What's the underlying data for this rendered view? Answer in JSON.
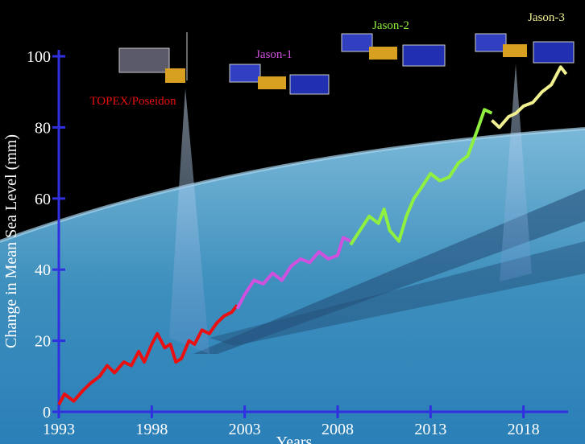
{
  "chart_data": {
    "type": "line",
    "xlabel": "Years",
    "ylabel": "Change in Mean Sea Level (mm)",
    "xlim": [
      1993,
      2020.4
    ],
    "ylim": [
      0,
      100
    ],
    "xticks": [
      1993,
      1998,
      2003,
      2008,
      2013,
      2018
    ],
    "yticks": [
      0,
      20,
      40,
      60,
      80,
      100
    ],
    "axis_color": "#3030e0",
    "series": [
      {
        "name": "TOPEX/Poseidon",
        "color": "#e81010",
        "x": [
          1993.0,
          1993.3,
          1993.8,
          1994.3,
          1994.7,
          1995.2,
          1995.6,
          1996.0,
          1996.5,
          1996.9,
          1997.3,
          1997.6,
          1998.0,
          1998.3,
          1998.7,
          1999.0,
          1999.3,
          1999.6,
          2000.0,
          2000.3,
          2000.7,
          2001.1,
          2001.5,
          2001.9,
          2002.3,
          2002.6
        ],
        "values": [
          2,
          5,
          3,
          6,
          8,
          10,
          13,
          11,
          14,
          13,
          17,
          14,
          19,
          22,
          18,
          19,
          14,
          15,
          20,
          19,
          23,
          22,
          25,
          27,
          28,
          30
        ]
      },
      {
        "name": "Jason-1",
        "color": "#d050e0",
        "x": [
          2002.6,
          2003.0,
          2003.5,
          2004.0,
          2004.5,
          2005.0,
          2005.5,
          2006.0,
          2006.5,
          2007.0,
          2007.5,
          2008.0,
          2008.3,
          2008.7
        ],
        "values": [
          29,
          33,
          37,
          36,
          39,
          37,
          41,
          43,
          42,
          45,
          43,
          44,
          49,
          48
        ]
      },
      {
        "name": "Jason-2",
        "color": "#90f040",
        "x": [
          2008.7,
          2009.2,
          2009.7,
          2010.2,
          2010.5,
          2010.8,
          2011.3,
          2011.7,
          2012.1,
          2012.5,
          2013.0,
          2013.5,
          2014.0,
          2014.5,
          2015.0,
          2015.5,
          2015.9,
          2016.3
        ],
        "values": [
          47,
          51,
          55,
          53,
          57,
          51,
          48,
          55,
          60,
          63,
          67,
          65,
          66,
          70,
          72,
          79,
          85,
          84
        ]
      },
      {
        "name": "Jason-3",
        "color": "#f0f090",
        "x": [
          2016.3,
          2016.7,
          2017.2,
          2017.6,
          2018.0,
          2018.5,
          2019.0,
          2019.5,
          2020.0,
          2020.3
        ],
        "values": [
          82,
          80,
          83,
          84,
          86,
          87,
          90,
          92,
          97,
          95
        ]
      }
    ]
  }
}
